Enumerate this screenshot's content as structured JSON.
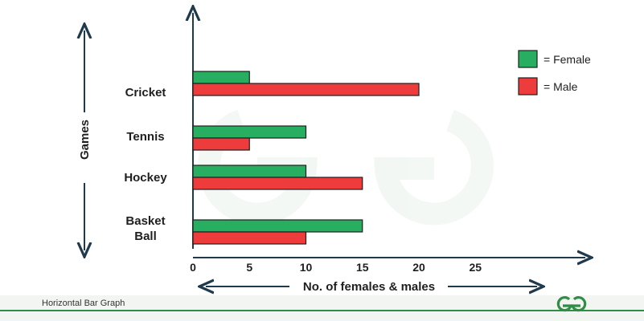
{
  "chart_data": {
    "type": "bar",
    "orientation": "horizontal",
    "categories": [
      "Cricket",
      "Tennis",
      "Hockey",
      "Basket Ball"
    ],
    "category_lines": [
      [
        "Cricket"
      ],
      [
        "Tennis"
      ],
      [
        "Hockey"
      ],
      [
        "Basket",
        "Ball"
      ]
    ],
    "series": [
      {
        "name": "= Female",
        "color": "#27ae60",
        "values": [
          5,
          10,
          10,
          15
        ]
      },
      {
        "name": "= Male",
        "color": "#ee3b3b",
        "values": [
          20,
          5,
          15,
          10
        ]
      }
    ],
    "xticks": [
      0,
      5,
      10,
      15,
      20,
      25
    ],
    "xlim": [
      0,
      25
    ],
    "xlabel": "No. of females & males",
    "ylabel": "Games",
    "legend_position": "top-right",
    "grid": false
  },
  "footer": {
    "caption": "Horizontal Bar Graph",
    "accent_color": "#2f8d46",
    "logo_icon": "gfg-logo-icon"
  }
}
